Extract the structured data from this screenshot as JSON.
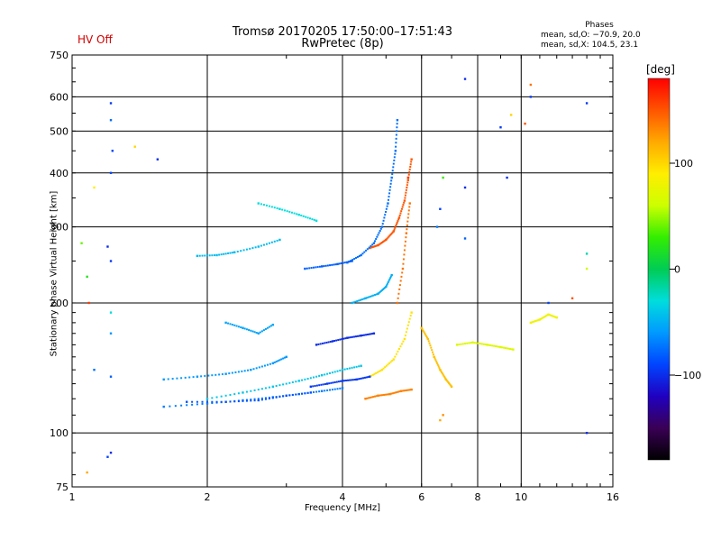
{
  "header": {
    "title_line1": "Tromsø 20170205 17:50:00–17:51:43",
    "title_line2": "RwPretec (8p)",
    "hv_status": "HV Off",
    "phases_title": "Phases",
    "phase_o_stat": "mean, sd,O: −70.9, 20.0",
    "phase_x_stat": "mean, sd,X: 104.5, 23.1"
  },
  "colorbar": {
    "unit": "[deg]",
    "ticks": [
      {
        "value": 100,
        "label": "100"
      },
      {
        "value": 0,
        "label": "0"
      },
      {
        "value": -100,
        "label": "−100"
      }
    ],
    "range": [
      -180,
      180
    ],
    "colors": [
      "#000000",
      "#3a0055",
      "#2000c0",
      "#0044ff",
      "#0099ff",
      "#00dddd",
      "#00cc55",
      "#33ee00",
      "#ccff00",
      "#ffee00",
      "#ffaa00",
      "#ff5500",
      "#ff0000"
    ]
  },
  "chart_data": {
    "type": "scatter",
    "xlabel": "Frequency [MHz]",
    "ylabel": "Stationary phase Virtual Height [km]",
    "xscale": "log",
    "yscale": "log",
    "xlim": [
      1,
      16
    ],
    "ylim": [
      75,
      750
    ],
    "x_ticks": [
      {
        "value": 1,
        "label": "1"
      },
      {
        "value": 2,
        "label": "2"
      },
      {
        "value": 4,
        "label": "4"
      },
      {
        "value": 6,
        "label": "6"
      },
      {
        "value": 8,
        "label": "8"
      },
      {
        "value": 10,
        "label": "10"
      },
      {
        "value": 16,
        "label": "16"
      }
    ],
    "y_ticks": [
      {
        "value": 75,
        "label": "75"
      },
      {
        "value": 100,
        "label": "100"
      },
      {
        "value": 200,
        "label": "200"
      },
      {
        "value": 300,
        "label": "300"
      },
      {
        "value": 400,
        "label": "400"
      },
      {
        "value": 500,
        "label": "500"
      },
      {
        "value": 600,
        "label": "600"
      },
      {
        "value": 750,
        "label": "750"
      }
    ],
    "x_grid": [
      2,
      4,
      6,
      8,
      10
    ],
    "y_grid": [
      100,
      200,
      300,
      400,
      500,
      600
    ],
    "grid": true,
    "traces": [
      {
        "name": "",
        "phase": 150,
        "points": [
          [
            4.6,
            268
          ],
          [
            4.8,
            272
          ],
          [
            5.0,
            280
          ],
          [
            5.2,
            293
          ],
          [
            5.35,
            315
          ],
          [
            5.5,
            345
          ],
          [
            5.6,
            385
          ],
          [
            5.7,
            430
          ]
        ]
      },
      {
        "name": "",
        "phase": 140,
        "points": [
          [
            5.3,
            200
          ],
          [
            5.45,
            240
          ],
          [
            5.55,
            290
          ],
          [
            5.65,
            340
          ]
        ]
      },
      {
        "name": "",
        "phase": 135,
        "points": [
          [
            4.5,
            120
          ],
          [
            4.8,
            122
          ],
          [
            5.1,
            123
          ],
          [
            5.4,
            125
          ],
          [
            5.7,
            126
          ]
        ]
      },
      {
        "name": "",
        "phase": 95,
        "points": [
          [
            4.6,
            135
          ],
          [
            4.9,
            140
          ],
          [
            5.2,
            148
          ],
          [
            5.5,
            165
          ],
          [
            5.7,
            190
          ]
        ]
      },
      {
        "name": "",
        "phase": -95,
        "points": [
          [
            3.4,
            128
          ],
          [
            3.7,
            130
          ],
          [
            4.0,
            132
          ],
          [
            4.3,
            133
          ],
          [
            4.6,
            135
          ]
        ]
      },
      {
        "name": "",
        "phase": -100,
        "points": [
          [
            3.5,
            160
          ],
          [
            3.8,
            163
          ],
          [
            4.1,
            166
          ],
          [
            4.4,
            168
          ],
          [
            4.7,
            170
          ]
        ]
      },
      {
        "name": "",
        "phase": -50,
        "points": [
          [
            4.2,
            200
          ],
          [
            4.5,
            205
          ],
          [
            4.8,
            210
          ],
          [
            5.0,
            218
          ],
          [
            5.15,
            232
          ]
        ]
      },
      {
        "name": "",
        "phase": -75,
        "points": [
          [
            4.1,
            248
          ],
          [
            4.4,
            258
          ],
          [
            4.7,
            275
          ],
          [
            4.9,
            300
          ],
          [
            5.05,
            340
          ],
          [
            5.15,
            390
          ],
          [
            5.25,
            450
          ],
          [
            5.3,
            530
          ]
        ]
      },
      {
        "name": "",
        "phase": -60,
        "points": [
          [
            1.6,
            133
          ],
          [
            1.9,
            135
          ],
          [
            2.2,
            137
          ],
          [
            2.5,
            140
          ],
          [
            2.8,
            145
          ],
          [
            3.0,
            150
          ]
        ]
      },
      {
        "name": "",
        "phase": -70,
        "points": [
          [
            1.6,
            115
          ],
          [
            2.0,
            117
          ],
          [
            2.4,
            119
          ],
          [
            2.8,
            121
          ],
          [
            3.2,
            123
          ],
          [
            3.6,
            125
          ],
          [
            4.0,
            127
          ]
        ]
      },
      {
        "name": "",
        "phase": -40,
        "points": [
          [
            2.0,
            120
          ],
          [
            2.4,
            124
          ],
          [
            2.8,
            128
          ],
          [
            3.2,
            132
          ],
          [
            3.6,
            136
          ],
          [
            4.0,
            140
          ],
          [
            4.4,
            143
          ]
        ]
      },
      {
        "name": "",
        "phase": -85,
        "points": [
          [
            1.8,
            118
          ],
          [
            2.2,
            118
          ],
          [
            2.6,
            119
          ],
          [
            3.0,
            122
          ],
          [
            3.4,
            124
          ]
        ]
      },
      {
        "name": "",
        "phase": -45,
        "points": [
          [
            1.9,
            257
          ],
          [
            2.1,
            258
          ],
          [
            2.3,
            262
          ],
          [
            2.6,
            270
          ],
          [
            2.9,
            280
          ]
        ]
      },
      {
        "name": "",
        "phase": -55,
        "points": [
          [
            2.2,
            180
          ],
          [
            2.4,
            175
          ],
          [
            2.6,
            170
          ],
          [
            2.8,
            178
          ]
        ]
      },
      {
        "name": "",
        "phase": -30,
        "points": [
          [
            2.6,
            340
          ],
          [
            2.9,
            330
          ],
          [
            3.2,
            320
          ],
          [
            3.5,
            310
          ]
        ]
      },
      {
        "name": "",
        "phase": -80,
        "points": [
          [
            3.3,
            240
          ],
          [
            3.6,
            243
          ],
          [
            3.9,
            246
          ],
          [
            4.2,
            250
          ]
        ]
      },
      {
        "name": "",
        "phase": 110,
        "points": [
          [
            6.0,
            175
          ],
          [
            6.2,
            165
          ],
          [
            6.4,
            150
          ],
          [
            6.6,
            140
          ],
          [
            6.8,
            133
          ],
          [
            7.0,
            128
          ]
        ]
      },
      {
        "name": "",
        "phase": 70,
        "points": [
          [
            7.2,
            160
          ],
          [
            7.8,
            162
          ],
          [
            8.4,
            160
          ],
          [
            9.0,
            158
          ],
          [
            9.6,
            156
          ]
        ]
      },
      {
        "name": "",
        "phase": 80,
        "points": [
          [
            10.5,
            180
          ],
          [
            11.0,
            183
          ],
          [
            11.5,
            188
          ],
          [
            12.0,
            185
          ]
        ]
      }
    ],
    "isolated_points": [
      [
        1.22,
        580,
        -95
      ],
      [
        1.22,
        530,
        -75
      ],
      [
        1.23,
        450,
        -90
      ],
      [
        1.22,
        400,
        -90
      ],
      [
        1.38,
        460,
        100
      ],
      [
        1.55,
        430,
        -100
      ],
      [
        1.12,
        370,
        90
      ],
      [
        1.2,
        270,
        -100
      ],
      [
        1.22,
        250,
        -95
      ],
      [
        1.05,
        275,
        40
      ],
      [
        1.08,
        230,
        20
      ],
      [
        1.09,
        200,
        160
      ],
      [
        1.22,
        190,
        -30
      ],
      [
        1.22,
        170,
        -60
      ],
      [
        1.12,
        140,
        -75
      ],
      [
        1.22,
        135,
        -80
      ],
      [
        1.22,
        90,
        -100
      ],
      [
        1.2,
        88,
        -90
      ],
      [
        1.08,
        81,
        120
      ],
      [
        7.5,
        660,
        -100
      ],
      [
        10.5,
        640,
        140
      ],
      [
        10.5,
        600,
        -95
      ],
      [
        14,
        580,
        -95
      ],
      [
        9.0,
        510,
        -95
      ],
      [
        9.5,
        545,
        100
      ],
      [
        10.2,
        520,
        150
      ],
      [
        9.3,
        390,
        -100
      ],
      [
        7.5,
        370,
        -100
      ],
      [
        6.6,
        330,
        -90
      ],
      [
        6.5,
        300,
        -70
      ],
      [
        7.5,
        282,
        -80
      ],
      [
        14,
        260,
        -20
      ],
      [
        14,
        240,
        60
      ],
      [
        13,
        205,
        150
      ],
      [
        11.5,
        200,
        -90
      ],
      [
        6.7,
        110,
        130
      ],
      [
        6.6,
        107,
        120
      ],
      [
        14,
        100,
        -100
      ],
      [
        5.6,
        390,
        160
      ],
      [
        6.7,
        390,
        30
      ]
    ]
  }
}
